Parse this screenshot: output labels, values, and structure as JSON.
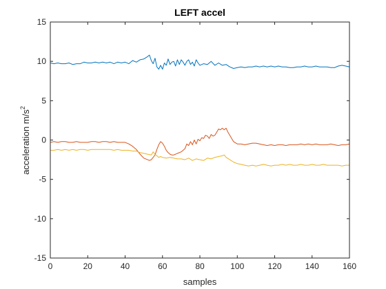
{
  "chart_data": {
    "type": "line",
    "title": "LEFT accel",
    "xlabel": "samples",
    "ylabel_text": "acceleration m/s",
    "ylabel_superscript": "2",
    "xlim": [
      0,
      160
    ],
    "ylim": [
      -15,
      15
    ],
    "xticks": [
      "0",
      "20",
      "40",
      "60",
      "80",
      "100",
      "120",
      "140",
      "160"
    ],
    "yticks": [
      "-15",
      "-10",
      "-5",
      "0",
      "5",
      "10",
      "15"
    ],
    "grid": false,
    "legend": "none",
    "series": [
      {
        "color": "#0072BD",
        "points": [
          [
            0,
            9.8
          ],
          [
            2,
            9.7
          ],
          [
            4,
            9.8
          ],
          [
            6,
            9.7
          ],
          [
            8,
            9.7
          ],
          [
            10,
            9.8
          ],
          [
            12,
            9.6
          ],
          [
            14,
            9.7
          ],
          [
            16,
            9.7
          ],
          [
            18,
            9.9
          ],
          [
            20,
            9.8
          ],
          [
            22,
            9.8
          ],
          [
            24,
            9.9
          ],
          [
            26,
            9.8
          ],
          [
            28,
            9.9
          ],
          [
            30,
            9.8
          ],
          [
            32,
            9.9
          ],
          [
            34,
            9.7
          ],
          [
            36,
            9.9
          ],
          [
            38,
            9.8
          ],
          [
            40,
            9.9
          ],
          [
            42,
            9.7
          ],
          [
            44,
            10.1
          ],
          [
            46,
            9.9
          ],
          [
            48,
            10.2
          ],
          [
            50,
            10.3
          ],
          [
            52,
            10.6
          ],
          [
            53,
            10.8
          ],
          [
            54,
            10.1
          ],
          [
            55,
            9.7
          ],
          [
            56,
            10.4
          ],
          [
            57,
            9.3
          ],
          [
            58,
            9.0
          ],
          [
            59,
            9.5
          ],
          [
            60,
            9.0
          ],
          [
            61,
            9.8
          ],
          [
            62,
            9.5
          ],
          [
            63,
            10.3
          ],
          [
            64,
            9.6
          ],
          [
            65,
            9.9
          ],
          [
            66,
            10.0
          ],
          [
            67,
            9.4
          ],
          [
            68,
            10.2
          ],
          [
            69,
            9.6
          ],
          [
            70,
            10.2
          ],
          [
            71,
            9.9
          ],
          [
            72,
            9.5
          ],
          [
            73,
            10.0
          ],
          [
            74,
            10.2
          ],
          [
            75,
            9.6
          ],
          [
            76,
            9.9
          ],
          [
            77,
            9.4
          ],
          [
            78,
            10.2
          ],
          [
            79,
            9.8
          ],
          [
            80,
            9.5
          ],
          [
            82,
            9.7
          ],
          [
            84,
            9.6
          ],
          [
            86,
            10.0
          ],
          [
            88,
            9.5
          ],
          [
            90,
            9.8
          ],
          [
            92,
            9.5
          ],
          [
            94,
            9.6
          ],
          [
            96,
            9.3
          ],
          [
            98,
            9.1
          ],
          [
            100,
            9.2
          ],
          [
            102,
            9.3
          ],
          [
            104,
            9.2
          ],
          [
            106,
            9.3
          ],
          [
            108,
            9.3
          ],
          [
            110,
            9.4
          ],
          [
            112,
            9.3
          ],
          [
            114,
            9.4
          ],
          [
            116,
            9.3
          ],
          [
            118,
            9.4
          ],
          [
            120,
            9.3
          ],
          [
            122,
            9.4
          ],
          [
            124,
            9.3
          ],
          [
            126,
            9.3
          ],
          [
            128,
            9.2
          ],
          [
            130,
            9.2
          ],
          [
            132,
            9.3
          ],
          [
            134,
            9.3
          ],
          [
            136,
            9.4
          ],
          [
            138,
            9.3
          ],
          [
            140,
            9.3
          ],
          [
            142,
            9.4
          ],
          [
            144,
            9.3
          ],
          [
            146,
            9.3
          ],
          [
            148,
            9.3
          ],
          [
            150,
            9.2
          ],
          [
            152,
            9.2
          ],
          [
            154,
            9.4
          ],
          [
            156,
            9.5
          ],
          [
            158,
            9.4
          ],
          [
            160,
            9.3
          ]
        ]
      },
      {
        "color": "#D95319",
        "points": [
          [
            0,
            -0.3
          ],
          [
            2,
            -0.2
          ],
          [
            4,
            -0.3
          ],
          [
            6,
            -0.2
          ],
          [
            8,
            -0.2
          ],
          [
            10,
            -0.3
          ],
          [
            12,
            -0.3
          ],
          [
            14,
            -0.2
          ],
          [
            16,
            -0.3
          ],
          [
            18,
            -0.3
          ],
          [
            20,
            -0.3
          ],
          [
            22,
            -0.2
          ],
          [
            24,
            -0.2
          ],
          [
            26,
            -0.3
          ],
          [
            28,
            -0.2
          ],
          [
            30,
            -0.2
          ],
          [
            32,
            -0.3
          ],
          [
            34,
            -0.2
          ],
          [
            36,
            -0.3
          ],
          [
            38,
            -0.3
          ],
          [
            40,
            -0.3
          ],
          [
            42,
            -0.5
          ],
          [
            44,
            -0.8
          ],
          [
            46,
            -1.2
          ],
          [
            48,
            -1.8
          ],
          [
            50,
            -2.3
          ],
          [
            52,
            -2.5
          ],
          [
            53,
            -2.6
          ],
          [
            54,
            -2.5
          ],
          [
            55,
            -2.2
          ],
          [
            56,
            -1.9
          ],
          [
            57,
            -1.2
          ],
          [
            58,
            -0.6
          ],
          [
            59,
            -0.2
          ],
          [
            60,
            -0.4
          ],
          [
            61,
            -0.8
          ],
          [
            62,
            -1.3
          ],
          [
            63,
            -1.6
          ],
          [
            64,
            -1.8
          ],
          [
            65,
            -1.9
          ],
          [
            66,
            -1.9
          ],
          [
            67,
            -1.8
          ],
          [
            68,
            -1.7
          ],
          [
            70,
            -1.5
          ],
          [
            72,
            -1.1
          ],
          [
            73,
            -0.5
          ],
          [
            74,
            -0.7
          ],
          [
            75,
            -0.2
          ],
          [
            76,
            -0.6
          ],
          [
            77,
            0.0
          ],
          [
            78,
            -0.5
          ],
          [
            79,
            0.1
          ],
          [
            80,
            -0.1
          ],
          [
            81,
            0.3
          ],
          [
            82,
            0.2
          ],
          [
            83,
            0.6
          ],
          [
            84,
            0.5
          ],
          [
            85,
            0.2
          ],
          [
            86,
            0.7
          ],
          [
            87,
            0.5
          ],
          [
            88,
            0.6
          ],
          [
            89,
            1.0
          ],
          [
            90,
            1.4
          ],
          [
            91,
            1.3
          ],
          [
            92,
            1.5
          ],
          [
            93,
            1.3
          ],
          [
            94,
            1.5
          ],
          [
            95,
            1.0
          ],
          [
            96,
            0.6
          ],
          [
            97,
            0.2
          ],
          [
            98,
            -0.2
          ],
          [
            100,
            -0.5
          ],
          [
            102,
            -0.5
          ],
          [
            104,
            -0.6
          ],
          [
            106,
            -0.5
          ],
          [
            108,
            -0.4
          ],
          [
            110,
            -0.4
          ],
          [
            112,
            -0.5
          ],
          [
            114,
            -0.6
          ],
          [
            116,
            -0.7
          ],
          [
            118,
            -0.6
          ],
          [
            120,
            -0.7
          ],
          [
            122,
            -0.6
          ],
          [
            124,
            -0.6
          ],
          [
            126,
            -0.7
          ],
          [
            128,
            -0.6
          ],
          [
            130,
            -0.6
          ],
          [
            132,
            -0.6
          ],
          [
            134,
            -0.5
          ],
          [
            136,
            -0.6
          ],
          [
            138,
            -0.5
          ],
          [
            140,
            -0.6
          ],
          [
            142,
            -0.5
          ],
          [
            144,
            -0.6
          ],
          [
            146,
            -0.6
          ],
          [
            148,
            -0.6
          ],
          [
            150,
            -0.5
          ],
          [
            152,
            -0.6
          ],
          [
            154,
            -0.7
          ],
          [
            156,
            -0.6
          ],
          [
            158,
            -0.6
          ],
          [
            160,
            -0.5
          ]
        ]
      },
      {
        "color": "#EDB120",
        "points": [
          [
            0,
            -1.3
          ],
          [
            2,
            -1.3
          ],
          [
            4,
            -1.2
          ],
          [
            6,
            -1.3
          ],
          [
            8,
            -1.2
          ],
          [
            10,
            -1.3
          ],
          [
            12,
            -1.2
          ],
          [
            14,
            -1.3
          ],
          [
            16,
            -1.2
          ],
          [
            18,
            -1.2
          ],
          [
            20,
            -1.3
          ],
          [
            22,
            -1.2
          ],
          [
            24,
            -1.2
          ],
          [
            26,
            -1.2
          ],
          [
            28,
            -1.2
          ],
          [
            30,
            -1.2
          ],
          [
            32,
            -1.2
          ],
          [
            34,
            -1.3
          ],
          [
            36,
            -1.2
          ],
          [
            38,
            -1.3
          ],
          [
            40,
            -1.3
          ],
          [
            42,
            -1.3
          ],
          [
            44,
            -1.4
          ],
          [
            46,
            -1.4
          ],
          [
            48,
            -1.6
          ],
          [
            50,
            -1.7
          ],
          [
            52,
            -1.8
          ],
          [
            54,
            -1.9
          ],
          [
            55,
            -1.5
          ],
          [
            56,
            -1.8
          ],
          [
            57,
            -2.0
          ],
          [
            58,
            -2.2
          ],
          [
            59,
            -2.1
          ],
          [
            60,
            -2.2
          ],
          [
            62,
            -2.3
          ],
          [
            64,
            -2.2
          ],
          [
            66,
            -2.3
          ],
          [
            68,
            -2.4
          ],
          [
            70,
            -2.4
          ],
          [
            72,
            -2.5
          ],
          [
            74,
            -2.3
          ],
          [
            76,
            -2.6
          ],
          [
            78,
            -2.4
          ],
          [
            80,
            -2.5
          ],
          [
            82,
            -2.6
          ],
          [
            84,
            -2.3
          ],
          [
            86,
            -2.4
          ],
          [
            88,
            -2.2
          ],
          [
            90,
            -2.1
          ],
          [
            92,
            -2.0
          ],
          [
            93,
            -1.9
          ],
          [
            94,
            -2.2
          ],
          [
            96,
            -2.5
          ],
          [
            98,
            -2.8
          ],
          [
            100,
            -3.0
          ],
          [
            102,
            -3.1
          ],
          [
            104,
            -3.2
          ],
          [
            106,
            -3.3
          ],
          [
            108,
            -3.2
          ],
          [
            110,
            -3.3
          ],
          [
            112,
            -3.2
          ],
          [
            114,
            -3.1
          ],
          [
            116,
            -3.2
          ],
          [
            118,
            -3.3
          ],
          [
            120,
            -3.2
          ],
          [
            122,
            -3.2
          ],
          [
            124,
            -3.1
          ],
          [
            126,
            -3.2
          ],
          [
            128,
            -3.1
          ],
          [
            130,
            -3.2
          ],
          [
            132,
            -3.2
          ],
          [
            134,
            -3.1
          ],
          [
            136,
            -3.2
          ],
          [
            138,
            -3.2
          ],
          [
            140,
            -3.1
          ],
          [
            142,
            -3.2
          ],
          [
            144,
            -3.2
          ],
          [
            146,
            -3.1
          ],
          [
            148,
            -3.2
          ],
          [
            150,
            -3.2
          ],
          [
            152,
            -3.2
          ],
          [
            154,
            -3.2
          ],
          [
            156,
            -3.3
          ],
          [
            158,
            -3.2
          ],
          [
            160,
            -3.2
          ]
        ]
      }
    ]
  }
}
